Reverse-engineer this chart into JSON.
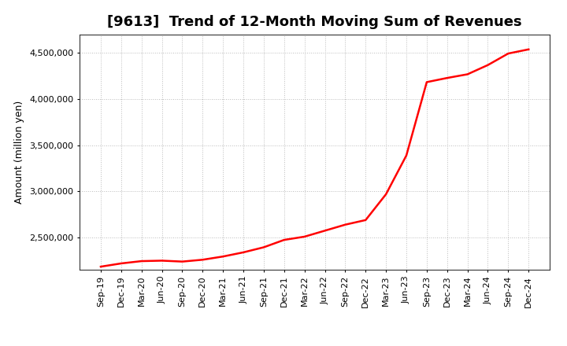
{
  "title": "[9613]  Trend of 12-Month Moving Sum of Revenues",
  "ylabel": "Amount (million yen)",
  "line_color": "#ff0000",
  "background_color": "#ffffff",
  "grid_color": "#bbbbbb",
  "ylim": [
    2150000,
    4700000
  ],
  "yticks": [
    2500000,
    3000000,
    3500000,
    4000000,
    4500000
  ],
  "x_labels": [
    "Sep-19",
    "Dec-19",
    "Mar-20",
    "Jun-20",
    "Sep-20",
    "Dec-20",
    "Mar-21",
    "Jun-21",
    "Sep-21",
    "Dec-21",
    "Mar-22",
    "Jun-22",
    "Sep-22",
    "Dec-22",
    "Mar-23",
    "Jun-23",
    "Sep-23",
    "Dec-23",
    "Mar-24",
    "Jun-24",
    "Sep-24",
    "Dec-24"
  ],
  "y_values": [
    2185000,
    2220000,
    2245000,
    2250000,
    2240000,
    2260000,
    2295000,
    2340000,
    2395000,
    2475000,
    2510000,
    2575000,
    2640000,
    2690000,
    2970000,
    3390000,
    4185000,
    4230000,
    4270000,
    4370000,
    4495000,
    4540000
  ],
  "title_fontsize": 13,
  "ylabel_fontsize": 9,
  "tick_fontsize": 8,
  "linewidth": 1.8
}
